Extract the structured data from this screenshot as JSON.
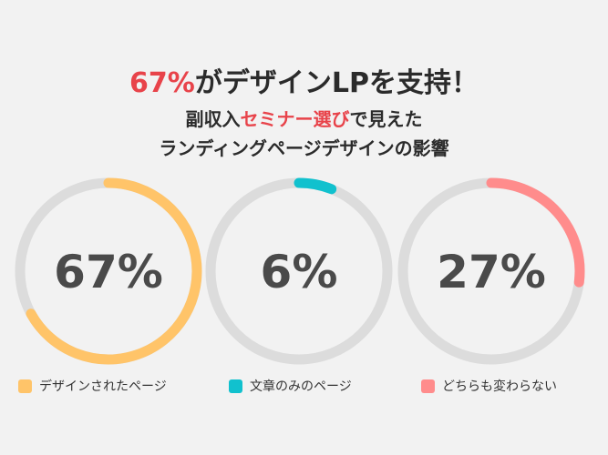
{
  "headline": {
    "accent": "67%",
    "rest": "がデザインLPを支持！"
  },
  "subtitle_line1": {
    "before": "副収入",
    "accent": "セミナー選び",
    "after": "で見えた"
  },
  "subtitle_line2": "ランディングページデザインの影響",
  "colors": {
    "accent_text": "#e8434a",
    "track": "#dcdcdc"
  },
  "chart_data": {
    "type": "pie",
    "variant": "donut",
    "unit": "%",
    "series": [
      {
        "name": "デザインされたページ",
        "value": 67,
        "label": "67%",
        "color": "#ffc469"
      },
      {
        "name": "文章のみのページ",
        "value": 6,
        "label": "6%",
        "color": "#11c1ce"
      },
      {
        "name": "どちらも変わらない",
        "value": 27,
        "label": "27%",
        "color": "#ff8c8c"
      }
    ],
    "legend_position": "bottom"
  }
}
